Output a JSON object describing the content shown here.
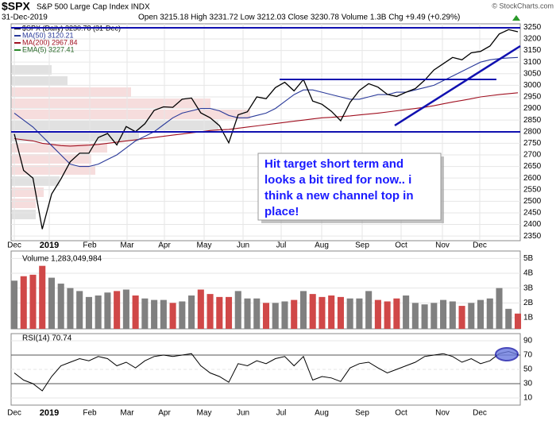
{
  "header": {
    "symbol": "$SPX",
    "name": "S&P 500 Large Cap Index INDX",
    "source": "© StockCharts.com",
    "date": "31-Dec-2019",
    "quote": "Open 3215.18  High 3231.72  Low 3212.03  Close 3230.78  Volume 1.3B  Chg +9.49 (+0.29%)"
  },
  "x_axis_labels": [
    "Dec",
    "2019",
    "Feb",
    "Mar",
    "Apr",
    "May",
    "Jun",
    "Jul",
    "Aug",
    "Sep",
    "Oct",
    "Nov",
    "Dec"
  ],
  "annotation": [
    "Hit target short term and",
    "looks a bit tired for now.. i",
    "think a new channel top in",
    "place!"
  ],
  "chart_data": [
    {
      "type": "line",
      "ylim": [
        2330,
        3265
      ],
      "yticks": [
        2350,
        2400,
        2450,
        2500,
        2550,
        2600,
        2650,
        2700,
        2750,
        2800,
        2850,
        2900,
        2950,
        3000,
        3050,
        3100,
        3150,
        3200,
        3250
      ],
      "extra_legend": "EMA(5) 3227.41",
      "series": [
        {
          "name": "$SPX (Daily) 3230.78 (31-Dec)",
          "color": "#000000",
          "values": [
            2790,
            2633,
            2600,
            2380,
            2531,
            2596,
            2670,
            2707,
            2707,
            2775,
            2792,
            2743,
            2822,
            2800,
            2834,
            2892,
            2907,
            2905,
            2940,
            2945,
            2881,
            2860,
            2826,
            2752,
            2873,
            2886,
            2950,
            2942,
            2990,
            3013,
            2976,
            3025,
            2932,
            2918,
            2888,
            2847,
            2926,
            2978,
            3007,
            2992,
            2961,
            2952,
            2970,
            2986,
            3022,
            3066,
            3093,
            3120,
            3110,
            3140,
            3146,
            3169,
            3221,
            3240,
            3230.78
          ]
        },
        {
          "name": "MA(50) 3120.21",
          "color": "#2a3a9a",
          "values": [
            2880,
            2850,
            2820,
            2780,
            2740,
            2700,
            2660,
            2650,
            2650,
            2660,
            2680,
            2700,
            2730,
            2760,
            2780,
            2800,
            2830,
            2860,
            2880,
            2890,
            2900,
            2900,
            2890,
            2870,
            2860,
            2860,
            2870,
            2880,
            2900,
            2930,
            2960,
            2980,
            2980,
            2970,
            2960,
            2950,
            2940,
            2940,
            2950,
            2960,
            2960,
            2970,
            2970,
            2980,
            2990,
            3000,
            3020,
            3040,
            3060,
            3080,
            3100,
            3110,
            3115,
            3118,
            3120.21
          ]
        },
        {
          "name": "MA(200) 2967.84",
          "color": "#a01020",
          "values": [
            2770,
            2765,
            2760,
            2750,
            2745,
            2740,
            2738,
            2740,
            2742,
            2745,
            2750,
            2755,
            2760,
            2765,
            2770,
            2775,
            2780,
            2785,
            2790,
            2795,
            2800,
            2805,
            2808,
            2810,
            2815,
            2820,
            2825,
            2830,
            2835,
            2840,
            2845,
            2850,
            2855,
            2860,
            2862,
            2865,
            2868,
            2872,
            2876,
            2880,
            2885,
            2890,
            2895,
            2900,
            2905,
            2912,
            2920,
            2928,
            2935,
            2942,
            2950,
            2955,
            2960,
            2964,
            2967.84
          ]
        }
      ]
    },
    {
      "type": "bar",
      "title": "Volume 1,283,049,984",
      "ylim": [
        0.25,
        5.5
      ],
      "yticks": [
        {
          "value": 1,
          "label": "1B"
        },
        {
          "value": 2,
          "label": "2B"
        },
        {
          "value": 3,
          "label": "3B"
        },
        {
          "value": 4,
          "label": "4B"
        },
        {
          "value": 5,
          "label": "5B"
        }
      ],
      "up_color": "#808080",
      "down_color": "#d04848",
      "values": [
        3.5,
        3.8,
        3.9,
        4.5,
        3.7,
        3.3,
        3.0,
        2.8,
        2.4,
        2.5,
        2.7,
        2.8,
        2.9,
        2.5,
        2.3,
        2.2,
        2.2,
        2.0,
        2.1,
        2.5,
        2.9,
        2.6,
        2.4,
        2.4,
        2.8,
        2.3,
        2.3,
        2.0,
        2.0,
        2.1,
        2.2,
        2.8,
        2.6,
        2.4,
        2.5,
        2.4,
        2.3,
        2.3,
        2.8,
        2.2,
        2.1,
        2.3,
        2.5,
        2.0,
        1.9,
        2.0,
        2.2,
        2.1,
        1.8,
        2.0,
        2.2,
        2.3,
        3.0,
        1.6,
        1.28
      ]
    },
    {
      "type": "line",
      "title": "RSI(14) 70.74",
      "ylim": [
        0,
        100
      ],
      "yticks": [
        10,
        30,
        50,
        70,
        90
      ],
      "color": "#000000",
      "values": [
        45,
        35,
        30,
        20,
        40,
        55,
        60,
        65,
        62,
        68,
        65,
        55,
        60,
        52,
        62,
        68,
        70,
        68,
        70,
        72,
        55,
        45,
        40,
        32,
        58,
        55,
        62,
        58,
        65,
        68,
        55,
        68,
        35,
        40,
        38,
        33,
        52,
        58,
        60,
        52,
        45,
        50,
        55,
        60,
        68,
        70,
        72,
        68,
        60,
        65,
        58,
        62,
        72,
        75,
        70.74
      ]
    }
  ]
}
